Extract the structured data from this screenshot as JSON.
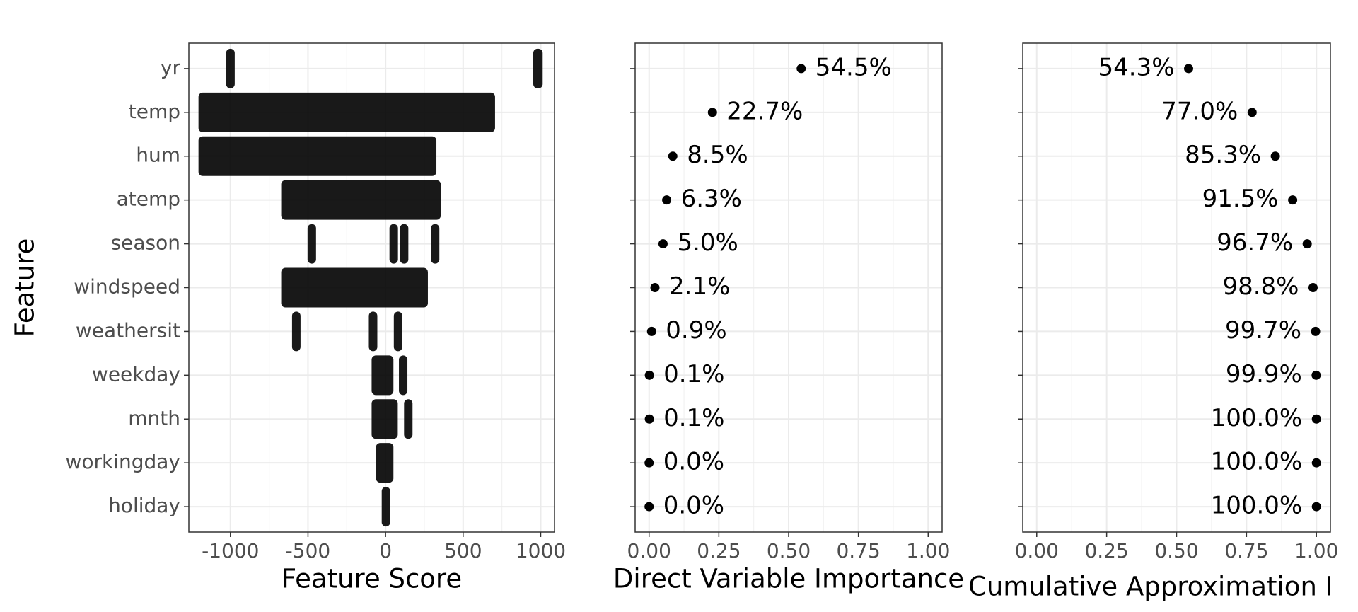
{
  "chart_data": [
    {
      "type": "strip",
      "x_label": "Feature Score",
      "y_label": "Feature",
      "categories": [
        "yr",
        "temp",
        "hum",
        "atemp",
        "season",
        "windspeed",
        "weathersit",
        "weekday",
        "mnth",
        "workingday",
        "holiday"
      ],
      "ranges": [
        [
          [
            -1005,
            -995
          ],
          [
            975,
            990
          ]
        ],
        [
          [
            -1183,
            683
          ]
        ],
        [
          [
            -1183,
            305
          ]
        ],
        [
          [
            -650,
            333
          ]
        ],
        [
          [
            -480,
            -476
          ],
          [
            48,
            52
          ],
          [
            115,
            119
          ],
          [
            315,
            320
          ]
        ],
        [
          [
            -650,
            250
          ]
        ],
        [
          [
            -580,
            -576
          ],
          [
            -85,
            -81
          ],
          [
            76,
            80
          ]
        ],
        [
          [
            -67,
            28
          ],
          [
            109,
            113
          ]
        ],
        [
          [
            -67,
            56
          ],
          [
            142,
            146
          ]
        ],
        [
          [
            -39,
            28
          ]
        ],
        [
          [
            -2,
            2
          ]
        ]
      ],
      "color": "#000000",
      "xlim": [
        -1268,
        1089
      ],
      "xticks": [
        -1000,
        -500,
        0,
        500,
        1000
      ],
      "grid": true
    },
    {
      "type": "dot",
      "x_label": "Direct Variable Importance",
      "values": [
        0.545,
        0.227,
        0.085,
        0.063,
        0.05,
        0.021,
        0.009,
        0.001,
        0.001,
        0.0,
        0.0
      ],
      "value_labels": [
        "54.5%",
        "22.7%",
        "8.5%",
        "6.3%",
        "5.0%",
        "2.1%",
        "0.9%",
        "0.1%",
        "0.1%",
        "0.0%",
        "0.0%"
      ],
      "label_side": "right",
      "color": "#000000",
      "xlim": [
        -0.05,
        1.05
      ],
      "xticks": [
        {
          "value": 0,
          "label": "0.00"
        },
        {
          "value": 0.25,
          "label": "0.25"
        },
        {
          "value": 0.5,
          "label": "0.50"
        },
        {
          "value": 0.75,
          "label": "0.75"
        },
        {
          "value": 1,
          "label": "1.00"
        }
      ],
      "grid": true
    },
    {
      "type": "dot",
      "x_label": "Cumulative Approximation I",
      "values": [
        0.543,
        0.77,
        0.853,
        0.915,
        0.967,
        0.988,
        0.997,
        0.999,
        1.0,
        1.0,
        1.0
      ],
      "value_labels": [
        "54.3%",
        "77.0%",
        "85.3%",
        "91.5%",
        "96.7%",
        "98.8%",
        "99.7%",
        "99.9%",
        "100.0%",
        "100.0%",
        "100.0%"
      ],
      "label_side": "left",
      "color": "#000000",
      "xlim": [
        -0.05,
        1.05
      ],
      "xticks": [
        {
          "value": 0,
          "label": "0.00"
        },
        {
          "value": 0.25,
          "label": "0.25"
        },
        {
          "value": 0.5,
          "label": "0.50"
        },
        {
          "value": 0.75,
          "label": "0.75"
        },
        {
          "value": 1,
          "label": "1.00"
        }
      ],
      "grid": true
    }
  ]
}
